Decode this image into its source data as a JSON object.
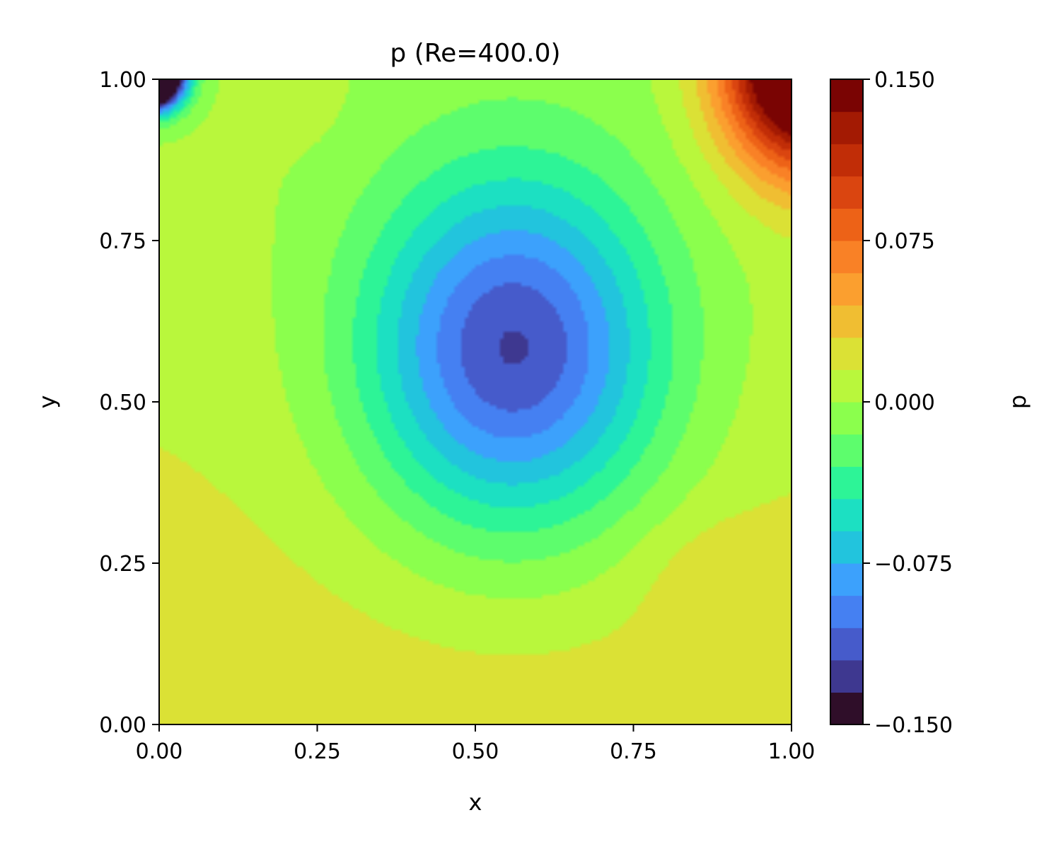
{
  "chart_data": {
    "type": "heatmap",
    "title": "p (Re=400.0)",
    "xlabel": "x",
    "ylabel": "y",
    "xlim": [
      0.0,
      1.0
    ],
    "ylim": [
      0.0,
      1.0
    ],
    "xticks": [
      "0.00",
      "0.25",
      "0.50",
      "0.75",
      "1.00"
    ],
    "yticks": [
      "0.00",
      "0.25",
      "0.50",
      "0.75",
      "1.00"
    ],
    "grid": false,
    "colorbar": {
      "label": "p",
      "range": [
        -0.15,
        0.15
      ],
      "ticks": [
        "0.150",
        "0.075",
        "0.000",
        "−0.075",
        "−0.150"
      ],
      "tick_values": [
        0.15,
        0.075,
        0.0,
        -0.075,
        -0.15
      ],
      "levels": 20,
      "colormap": "turbo",
      "colors": [
        "#2f0e29",
        "#3e3890",
        "#465bcb",
        "#4580f2",
        "#3ca1fc",
        "#22c4dd",
        "#1ce0c2",
        "#2df497",
        "#5dfd6d",
        "#8bff4d",
        "#b9f73c",
        "#dbe135",
        "#f0be32",
        "#fb9f2f",
        "#f98126",
        "#ed6217",
        "#da4510",
        "#c12d07",
        "#a31a03",
        "#7a0403"
      ]
    },
    "field_description": "pressure field over unit square: low-pressure vortex core near (0.56, 0.59), high pressure at top-right corner, low pressure at top-left corner"
  }
}
